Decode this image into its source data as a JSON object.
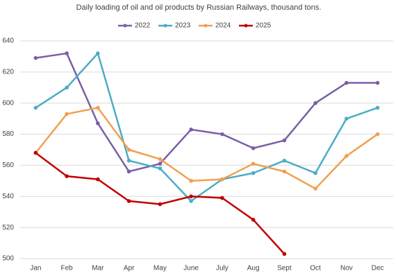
{
  "chart_data": {
    "type": "line",
    "title": "Daily loading of oil and oil products by Russian Railways, thousand tons.",
    "categories": [
      "Jan",
      "Feb",
      "Mar",
      "Apr",
      "May",
      "June",
      "July",
      "Aug",
      "Sept",
      "Oct",
      "Nov",
      "Dec"
    ],
    "series": [
      {
        "name": "2022",
        "color": "#7b5ea7",
        "values": [
          629,
          632,
          587,
          556,
          561,
          583,
          580,
          571,
          576,
          600,
          613,
          613
        ]
      },
      {
        "name": "2023",
        "color": "#4bacc6",
        "values": [
          597,
          610,
          632,
          563,
          558,
          537,
          551,
          555,
          563,
          555,
          590,
          597
        ]
      },
      {
        "name": "2024",
        "color": "#f0a050",
        "values": [
          568,
          593,
          597,
          570,
          564,
          550,
          551,
          561,
          556,
          545,
          566,
          580
        ]
      },
      {
        "name": "2025",
        "color": "#c00000",
        "values": [
          568,
          553,
          551,
          537,
          535,
          540,
          539,
          525,
          503,
          null,
          null,
          null
        ]
      }
    ],
    "ylim": [
      500,
      640
    ],
    "yticks": [
      500,
      520,
      540,
      560,
      580,
      600,
      620,
      640
    ],
    "grid": true
  }
}
